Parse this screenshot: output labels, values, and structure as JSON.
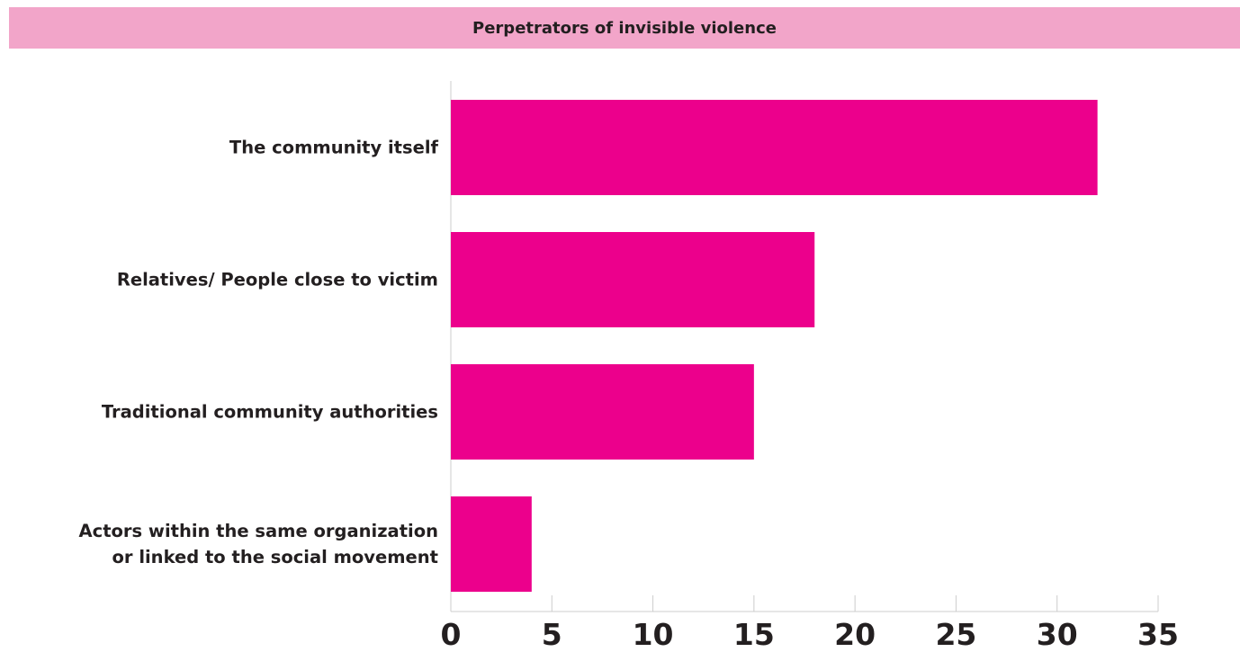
{
  "chart_data": {
    "type": "bar",
    "orientation": "horizontal",
    "title": "Perpetrators of invisible violence",
    "categories": [
      "The community itself",
      "Relatives/ People close to victim",
      "Traditional community authorities",
      "Actors within the same organization or linked to the social movement"
    ],
    "category_label_lines": [
      [
        "The community itself"
      ],
      [
        "Relatives/ People close to victim"
      ],
      [
        "Traditional community authorities"
      ],
      [
        "Actors within the same organization",
        "or linked to the social movement"
      ]
    ],
    "values": [
      32,
      18,
      15,
      4
    ],
    "xlim": [
      0,
      35
    ],
    "xticks": [
      0,
      5,
      10,
      15,
      20,
      25,
      30,
      35
    ],
    "xtick_labels": [
      "0",
      "5",
      "10",
      "15",
      "20",
      "25",
      "30",
      "35"
    ],
    "xlabel": "",
    "ylabel": "",
    "grid": false,
    "legend": "none",
    "colors": {
      "bar": "#ec008c",
      "title_band": "#f2a5c9",
      "axis": "#cccccc",
      "text": "#231f20"
    }
  }
}
